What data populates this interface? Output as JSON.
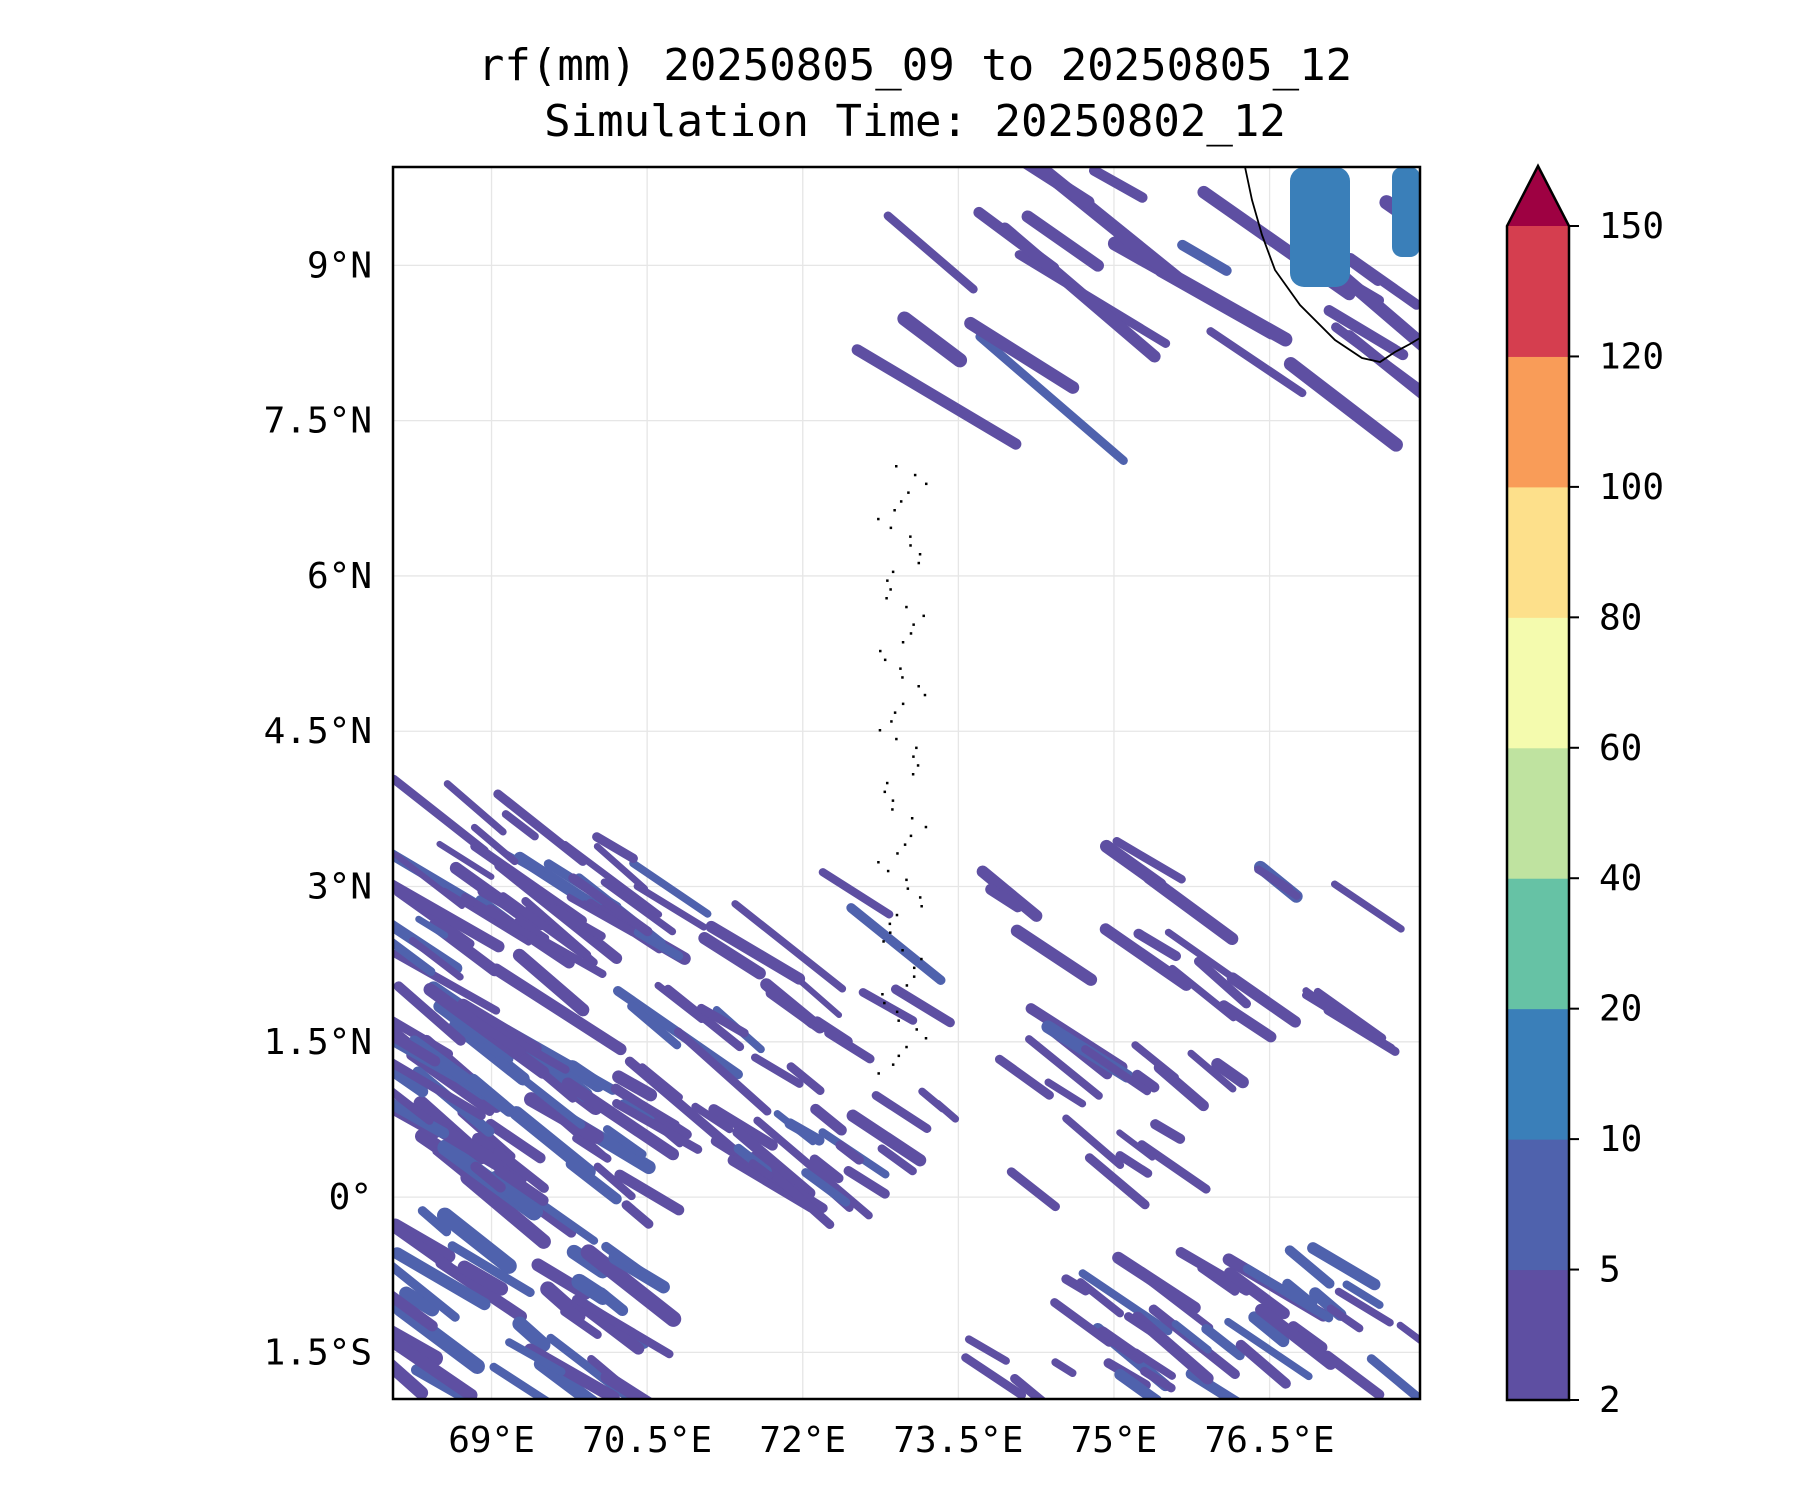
{
  "title": {
    "line1": "rf(mm) 20250805_09 to 20250805_12",
    "line2": "Simulation Time: 20250802_12"
  },
  "map": {
    "lat_ticks": [
      {
        "value": 9.0,
        "label": "9°N"
      },
      {
        "value": 7.5,
        "label": "7.5°N"
      },
      {
        "value": 6.0,
        "label": "6°N"
      },
      {
        "value": 4.5,
        "label": "4.5°N"
      },
      {
        "value": 3.0,
        "label": "3°N"
      },
      {
        "value": 1.5,
        "label": "1.5°N"
      },
      {
        "value": 0.0,
        "label": "0°"
      },
      {
        "value": -1.5,
        "label": "1.5°S"
      }
    ],
    "lon_ticks": [
      {
        "value": 69.0,
        "label": "69°E"
      },
      {
        "value": 70.5,
        "label": "70.5°E"
      },
      {
        "value": 72.0,
        "label": "72°E"
      },
      {
        "value": 73.5,
        "label": "73.5°E"
      },
      {
        "value": 75.0,
        "label": "75°E"
      },
      {
        "value": 76.5,
        "label": "76.5°E"
      }
    ],
    "lon_range": [
      68.05,
      77.95
    ],
    "lat_range": [
      -1.95,
      9.95
    ],
    "gridlines": true
  },
  "colorbar": {
    "levels": [
      {
        "label": "2",
        "color": "#5e4fa2"
      },
      {
        "label": "5",
        "color": "#4f62ad"
      },
      {
        "label": "10",
        "color": "#3a7fb9"
      },
      {
        "label": "20",
        "color": "#66c2a5"
      },
      {
        "label": "40",
        "color": "#bfe3a0"
      },
      {
        "label": "60",
        "color": "#f4fbae"
      },
      {
        "label": "80",
        "color": "#fde08b"
      },
      {
        "label": "100",
        "color": "#f99c58"
      },
      {
        "label": "120",
        "color": "#d53e4f"
      },
      {
        "label": "150",
        "color": "#9e0142"
      }
    ],
    "extend": "max"
  }
}
